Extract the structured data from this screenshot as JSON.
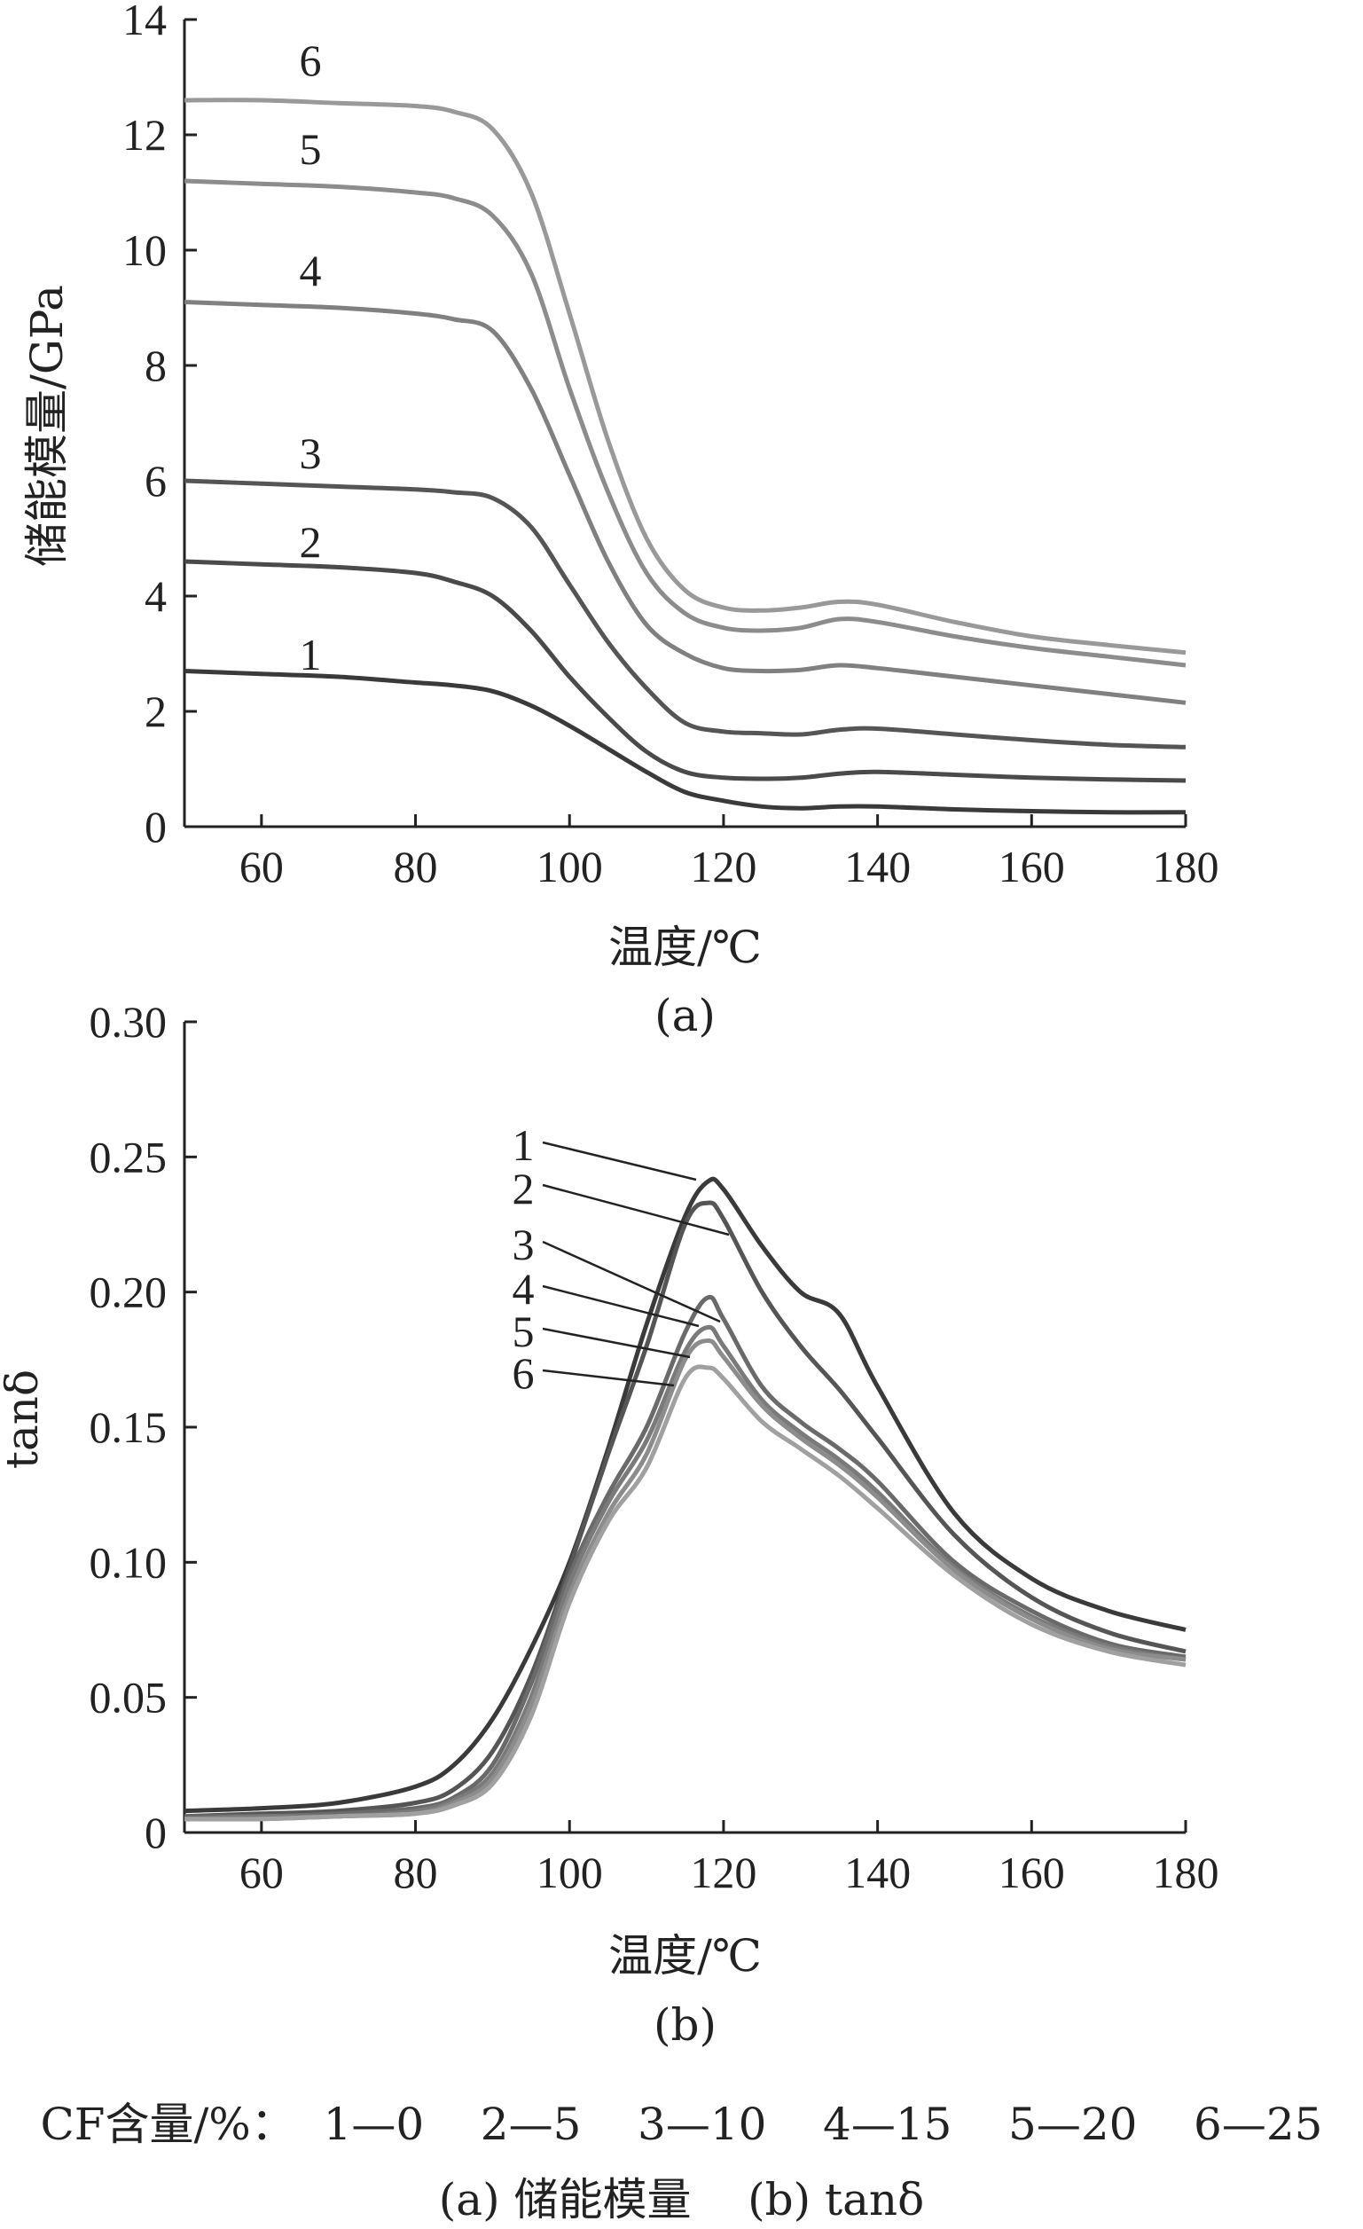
{
  "legend_line": "CF含量/%：  1—0    2—5    3—10    4—15    5—20    6—25",
  "caption_line": "(a) 储能模量    (b) tanδ",
  "chart_data": [
    {
      "type": "line",
      "panel_label": "(a)",
      "xlabel": "温度/℃",
      "ylabel": "储能模量/GPa",
      "xlim": [
        50,
        180
      ],
      "ylim": [
        0,
        14
      ],
      "xticks": [
        "60",
        "80",
        "100",
        "120",
        "140",
        "160",
        "180"
      ],
      "yticks": [
        "0",
        "2",
        "4",
        "6",
        "8",
        "10",
        "12",
        "14"
      ],
      "x": [
        50,
        60,
        70,
        80,
        85,
        90,
        95,
        100,
        105,
        110,
        115,
        120,
        125,
        130,
        135,
        140,
        150,
        160,
        170,
        180
      ],
      "series": [
        {
          "name": "1",
          "color": "#3a3a3a",
          "values": [
            2.7,
            2.65,
            2.6,
            2.5,
            2.45,
            2.35,
            2.1,
            1.75,
            1.35,
            0.95,
            0.6,
            0.45,
            0.35,
            0.32,
            0.35,
            0.35,
            0.3,
            0.27,
            0.25,
            0.25
          ]
        },
        {
          "name": "2",
          "color": "#4a4a4a",
          "values": [
            4.6,
            4.55,
            4.5,
            4.4,
            4.25,
            4.0,
            3.4,
            2.6,
            1.9,
            1.3,
            0.95,
            0.85,
            0.83,
            0.85,
            0.92,
            0.95,
            0.9,
            0.85,
            0.82,
            0.8
          ]
        },
        {
          "name": "3",
          "color": "#555555",
          "values": [
            6.0,
            5.95,
            5.9,
            5.85,
            5.8,
            5.7,
            5.2,
            4.2,
            3.2,
            2.4,
            1.8,
            1.65,
            1.62,
            1.6,
            1.68,
            1.7,
            1.6,
            1.5,
            1.42,
            1.38
          ]
        },
        {
          "name": "4",
          "color": "#808080",
          "values": [
            9.1,
            9.05,
            9.0,
            8.9,
            8.8,
            8.6,
            7.6,
            6.1,
            4.6,
            3.5,
            3.0,
            2.75,
            2.7,
            2.72,
            2.8,
            2.75,
            2.6,
            2.45,
            2.3,
            2.15
          ]
        },
        {
          "name": "5",
          "color": "#8c8c8c",
          "values": [
            11.2,
            11.15,
            11.1,
            11.0,
            10.9,
            10.6,
            9.6,
            7.6,
            5.8,
            4.4,
            3.7,
            3.45,
            3.4,
            3.45,
            3.6,
            3.55,
            3.3,
            3.1,
            2.95,
            2.8
          ]
        },
        {
          "name": "6",
          "color": "#999999",
          "values": [
            12.6,
            12.6,
            12.55,
            12.5,
            12.4,
            12.1,
            11.0,
            8.9,
            6.7,
            5.0,
            4.1,
            3.8,
            3.75,
            3.8,
            3.9,
            3.85,
            3.55,
            3.3,
            3.15,
            3.02
          ]
        }
      ]
    },
    {
      "type": "line",
      "panel_label": "(b)",
      "xlabel": "温度/℃",
      "ylabel": "tanδ",
      "xlim": [
        50,
        180
      ],
      "ylim": [
        0,
        0.3
      ],
      "xticks": [
        "60",
        "80",
        "100",
        "120",
        "140",
        "160",
        "180"
      ],
      "yticks": [
        "0",
        "0.05",
        "0.10",
        "0.15",
        "0.20",
        "0.25",
        "0.30"
      ],
      "x": [
        50,
        60,
        70,
        80,
        85,
        90,
        95,
        100,
        105,
        110,
        115,
        118,
        120,
        125,
        130,
        135,
        140,
        150,
        160,
        170,
        180
      ],
      "series": [
        {
          "name": "1",
          "color": "#3a3a3a",
          "values": [
            0.008,
            0.009,
            0.011,
            0.017,
            0.025,
            0.042,
            0.068,
            0.1,
            0.142,
            0.188,
            0.228,
            0.241,
            0.238,
            0.217,
            0.2,
            0.192,
            0.165,
            0.118,
            0.094,
            0.082,
            0.075
          ]
        },
        {
          "name": "2",
          "color": "#555555",
          "values": [
            0.006,
            0.007,
            0.008,
            0.011,
            0.016,
            0.03,
            0.058,
            0.098,
            0.14,
            0.18,
            0.225,
            0.233,
            0.227,
            0.2,
            0.18,
            0.164,
            0.146,
            0.11,
            0.087,
            0.074,
            0.067
          ]
        },
        {
          "name": "3",
          "color": "#6a6a6a",
          "values": [
            0.006,
            0.006,
            0.007,
            0.009,
            0.013,
            0.025,
            0.055,
            0.095,
            0.125,
            0.15,
            0.185,
            0.198,
            0.19,
            0.165,
            0.152,
            0.142,
            0.13,
            0.1,
            0.082,
            0.07,
            0.065
          ]
        },
        {
          "name": "4",
          "color": "#7a7a7a",
          "values": [
            0.005,
            0.006,
            0.006,
            0.008,
            0.012,
            0.022,
            0.05,
            0.092,
            0.122,
            0.145,
            0.178,
            0.187,
            0.18,
            0.16,
            0.148,
            0.138,
            0.126,
            0.098,
            0.08,
            0.069,
            0.064
          ]
        },
        {
          "name": "5",
          "color": "#8c8c8c",
          "values": [
            0.005,
            0.005,
            0.006,
            0.007,
            0.011,
            0.02,
            0.047,
            0.088,
            0.118,
            0.14,
            0.175,
            0.182,
            0.176,
            0.158,
            0.146,
            0.136,
            0.124,
            0.097,
            0.079,
            0.068,
            0.064
          ]
        },
        {
          "name": "6",
          "color": "#a0a0a0",
          "values": [
            0.005,
            0.005,
            0.006,
            0.007,
            0.01,
            0.018,
            0.043,
            0.085,
            0.115,
            0.135,
            0.168,
            0.172,
            0.168,
            0.152,
            0.142,
            0.132,
            0.12,
            0.095,
            0.077,
            0.067,
            0.062
          ]
        }
      ]
    }
  ]
}
